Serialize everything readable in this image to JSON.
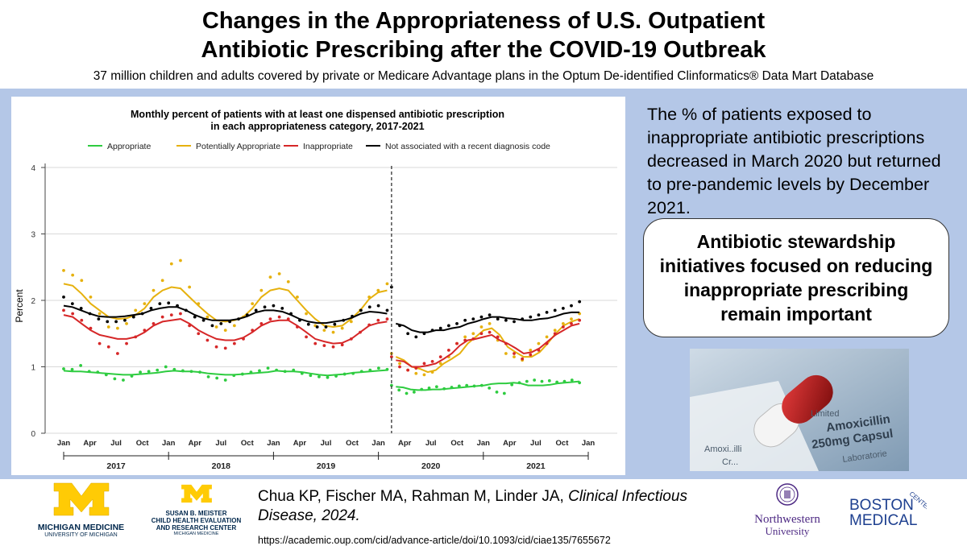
{
  "header": {
    "title_line1": "Changes in the Appropriateness of U.S. Outpatient",
    "title_line2": "Antibiotic Prescribing after the COVID-19 Outbreak",
    "subtitle": "37 million children and adults covered by private or Medicare Advantage plans in the Optum De-identified Clinformatics® Data Mart Database"
  },
  "summary": {
    "text": "The % of patients exposed to inappropriate antibiotic prescriptions decreased in March 2020 but returned to pre-pandemic levels by December 2021."
  },
  "callout": {
    "text": "Antibiotic stewardship initiatives focused on reducing inappropriate prescribing remain important"
  },
  "photo": {
    "label_line1": "Amoxicillin",
    "label_line2": "250mg Capsul",
    "label_limited": "Limited",
    "label_lab": "Laboratorie",
    "label_amox": "Amoxi..illi",
    "label_cro": "Cr..."
  },
  "citation": {
    "authors": "Chua KP, Fischer MA, Rahman M, Linder JA, ",
    "journal": "Clinical Infectious Disease, 2024.",
    "url": "https://academic.oup.com/cid/advance-article/doi/10.1093/cid/ciae135/7655672"
  },
  "logos": {
    "um_line1": "MICHIGAN MEDICINE",
    "um_line2": "UNIVERSITY OF MICHIGAN",
    "meister_line1": "SUSAN B. MEISTER",
    "meister_line2": "CHILD HEALTH EVALUATION",
    "meister_line3": "AND RESEARCH CENTER",
    "meister_line4": "MICHIGAN MEDICINE",
    "nw_line1": "Northwestern",
    "nw_line2": "University",
    "bmc_line1": "BOSTON",
    "bmc_line2": "MEDICAL",
    "bmc_center": "CENTER"
  },
  "colors": {
    "band": "#b4c7e7",
    "appropriate": "#2ecc40",
    "potentially": "#e6b10e",
    "inappropriate": "#d62728",
    "not_associated": "#000000",
    "um_yellow": "#ffcb05",
    "nw_purple": "#4e2a84",
    "bmc_blue": "#1d3f8f"
  },
  "chart_data": {
    "type": "line",
    "title_line1": "Monthly percent of patients with at least one dispensed antibiotic prescription",
    "title_line2": "in each appropriateness category, 2017-2021",
    "ylabel": "Percent",
    "xlabel": "",
    "ylim": [
      0,
      4
    ],
    "yticks": [
      "0",
      "1",
      "2",
      "3",
      "4"
    ],
    "month_ticks": [
      "Jan",
      "Apr",
      "Jul",
      "Oct",
      "Jan",
      "Apr",
      "Jul",
      "Oct",
      "Jan",
      "Apr",
      "Jul",
      "Oct",
      "Jan",
      "Apr",
      "Jul",
      "Oct",
      "Jan",
      "Apr",
      "Jul",
      "Oct",
      "Jan"
    ],
    "year_labels": [
      "2017",
      "2018",
      "2019",
      "2020",
      "2021"
    ],
    "break_label": "March 2020 (dashed vertical line)",
    "legend": [
      "Appropriate",
      "Potentially Appropriate",
      "Inappropriate",
      "Not associated with a recent diagnosis code"
    ],
    "series": [
      {
        "name": "Appropriate",
        "color": "#2ecc40",
        "pre_line": [
          0.94,
          0.93,
          0.93,
          0.92,
          0.91,
          0.9,
          0.89,
          0.88,
          0.88,
          0.89,
          0.9,
          0.91,
          0.93,
          0.94,
          0.93,
          0.93,
          0.92,
          0.9,
          0.89,
          0.88,
          0.88,
          0.89,
          0.9,
          0.91,
          0.92,
          0.94,
          0.93,
          0.93,
          0.92,
          0.9,
          0.88,
          0.87,
          0.88,
          0.89,
          0.91,
          0.92,
          0.93,
          0.94,
          0.95
        ],
        "pre_points": [
          0.97,
          0.96,
          1.02,
          0.93,
          0.92,
          0.88,
          0.82,
          0.8,
          0.86,
          0.92,
          0.93,
          0.95,
          1.0,
          0.96,
          0.94,
          0.93,
          0.92,
          0.85,
          0.83,
          0.8,
          0.87,
          0.89,
          0.92,
          0.94,
          0.98,
          0.95,
          0.93,
          0.95,
          0.9,
          0.87,
          0.85,
          0.84,
          0.86,
          0.89,
          0.9,
          0.93,
          0.95,
          0.98,
          0.96
        ],
        "post_line": [
          0.7,
          0.69,
          0.66,
          0.65,
          0.65,
          0.66,
          0.66,
          0.67,
          0.68,
          0.69,
          0.7,
          0.71,
          0.72,
          0.74,
          0.75,
          0.75,
          0.76,
          0.75,
          0.72,
          0.72,
          0.72,
          0.73,
          0.75,
          0.76,
          0.77,
          0.78
        ],
        "post_points": [
          0.72,
          0.65,
          0.6,
          0.62,
          0.66,
          0.68,
          0.7,
          0.67,
          0.69,
          0.71,
          0.72,
          0.71,
          0.72,
          0.68,
          0.62,
          0.6,
          0.73,
          0.76,
          0.78,
          0.8,
          0.78,
          0.79,
          0.77,
          0.78,
          0.8,
          0.76
        ]
      },
      {
        "name": "Potentially Appropriate",
        "color": "#e6b10e",
        "pre_line": [
          2.25,
          2.22,
          2.1,
          1.95,
          1.85,
          1.75,
          1.72,
          1.73,
          1.78,
          1.88,
          2.05,
          2.15,
          2.2,
          2.18,
          2.05,
          1.92,
          1.8,
          1.7,
          1.68,
          1.7,
          1.75,
          1.88,
          2.05,
          2.15,
          2.18,
          2.15,
          2.0,
          1.85,
          1.72,
          1.62,
          1.6,
          1.62,
          1.72,
          1.85,
          2.02,
          2.12,
          2.15
        ],
        "pre_points": [
          2.45,
          2.38,
          2.3,
          2.05,
          1.8,
          1.6,
          1.58,
          1.65,
          1.85,
          1.95,
          2.15,
          2.3,
          2.55,
          2.6,
          2.2,
          1.95,
          1.75,
          1.6,
          1.55,
          1.62,
          1.75,
          1.95,
          2.15,
          2.35,
          2.4,
          2.28,
          2.05,
          1.8,
          1.62,
          1.55,
          1.52,
          1.58,
          1.68,
          1.85,
          2.05,
          2.15,
          2.25
        ],
        "post_line": [
          1.15,
          1.1,
          1.0,
          0.97,
          0.92,
          0.95,
          1.05,
          1.12,
          1.2,
          1.35,
          1.45,
          1.55,
          1.58,
          1.48,
          1.3,
          1.22,
          1.15,
          1.15,
          1.22,
          1.35,
          1.5,
          1.62,
          1.68,
          1.72
        ],
        "post_points": [
          1.2,
          1.05,
          0.95,
          0.9,
          0.88,
          0.92,
          1.05,
          1.15,
          1.35,
          1.45,
          1.5,
          1.6,
          1.65,
          1.4,
          1.2,
          1.15,
          1.1,
          1.25,
          1.35,
          1.45,
          1.55,
          1.65,
          1.72,
          1.8
        ]
      },
      {
        "name": "Inappropriate",
        "color": "#d62728",
        "pre_line": [
          1.78,
          1.75,
          1.65,
          1.55,
          1.48,
          1.45,
          1.42,
          1.42,
          1.45,
          1.52,
          1.62,
          1.68,
          1.7,
          1.72,
          1.65,
          1.55,
          1.48,
          1.42,
          1.4,
          1.4,
          1.44,
          1.52,
          1.62,
          1.68,
          1.7,
          1.7,
          1.62,
          1.52,
          1.42,
          1.38,
          1.35,
          1.36,
          1.42,
          1.52,
          1.62,
          1.66,
          1.68
        ],
        "pre_points": [
          1.85,
          1.8,
          1.7,
          1.58,
          1.35,
          1.3,
          1.2,
          1.35,
          1.45,
          1.55,
          1.65,
          1.75,
          1.78,
          1.8,
          1.62,
          1.5,
          1.4,
          1.3,
          1.28,
          1.35,
          1.42,
          1.55,
          1.65,
          1.72,
          1.75,
          1.72,
          1.6,
          1.45,
          1.35,
          1.32,
          1.3,
          1.33,
          1.42,
          1.52,
          1.63,
          1.7,
          1.72
        ],
        "post_line": [
          1.1,
          1.08,
          1.0,
          1.0,
          1.02,
          1.05,
          1.12,
          1.2,
          1.32,
          1.4,
          1.42,
          1.45,
          1.48,
          1.4,
          1.35,
          1.28,
          1.2,
          1.22,
          1.28,
          1.38,
          1.48,
          1.55,
          1.62,
          1.65
        ],
        "post_points": [
          1.15,
          1.0,
          0.95,
          0.98,
          1.05,
          1.08,
          1.15,
          1.25,
          1.35,
          1.4,
          1.42,
          1.5,
          1.52,
          1.45,
          1.35,
          1.2,
          1.12,
          1.18,
          1.25,
          1.35,
          1.5,
          1.6,
          1.65,
          1.7
        ]
      },
      {
        "name": "Not associated with a recent diagnosis code",
        "color": "#000000",
        "pre_line": [
          1.92,
          1.9,
          1.85,
          1.8,
          1.76,
          1.75,
          1.75,
          1.76,
          1.78,
          1.8,
          1.85,
          1.88,
          1.9,
          1.9,
          1.85,
          1.78,
          1.73,
          1.7,
          1.7,
          1.7,
          1.72,
          1.76,
          1.82,
          1.85,
          1.85,
          1.83,
          1.78,
          1.72,
          1.68,
          1.66,
          1.66,
          1.68,
          1.7,
          1.74,
          1.8,
          1.83,
          1.82,
          1.8
        ],
        "pre_points": [
          2.05,
          1.95,
          1.88,
          1.8,
          1.72,
          1.68,
          1.68,
          1.7,
          1.75,
          1.8,
          1.88,
          1.95,
          1.96,
          1.92,
          1.85,
          1.75,
          1.7,
          1.62,
          1.65,
          1.68,
          1.72,
          1.78,
          1.85,
          1.9,
          1.92,
          1.88,
          1.8,
          1.7,
          1.64,
          1.6,
          1.6,
          1.64,
          1.7,
          1.76,
          1.85,
          1.9,
          1.92,
          1.85
        ],
        "post_line": [
          1.65,
          1.62,
          1.55,
          1.52,
          1.52,
          1.55,
          1.55,
          1.58,
          1.6,
          1.65,
          1.68,
          1.72,
          1.75,
          1.75,
          1.73,
          1.72,
          1.7,
          1.7,
          1.72,
          1.73,
          1.76,
          1.8,
          1.82,
          1.82
        ],
        "post_points": [
          2.2,
          1.62,
          1.5,
          1.45,
          1.5,
          1.55,
          1.58,
          1.62,
          1.65,
          1.7,
          1.72,
          1.75,
          1.78,
          1.72,
          1.7,
          1.68,
          1.72,
          1.75,
          1.78,
          1.82,
          1.85,
          1.88,
          1.92,
          1.98
        ]
      }
    ]
  }
}
